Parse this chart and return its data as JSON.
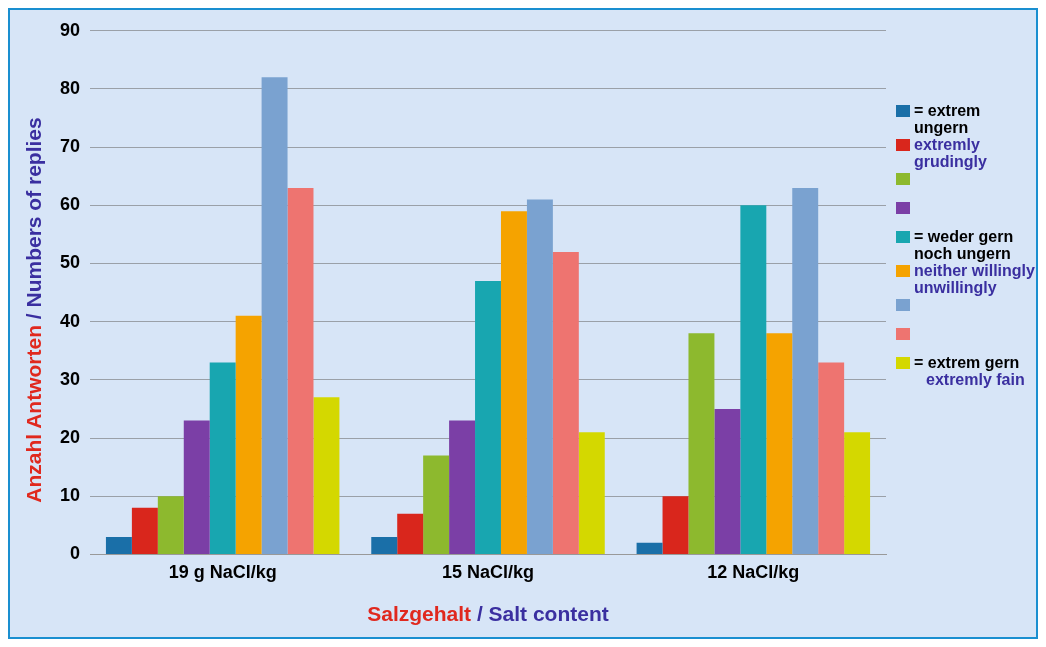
{
  "chart_data": {
    "type": "bar",
    "categories": [
      "19 g NaCl/kg",
      "15 NaCl/kg",
      "12 NaCl/kg"
    ],
    "xlabel": "Salzgehalt / Salt content",
    "ylabel": "Anzahl Antworten / Numbers of replies",
    "ylim": [
      0,
      90
    ],
    "yticks": [
      0,
      10,
      20,
      30,
      40,
      50,
      60,
      70,
      80,
      90
    ],
    "grid": "y",
    "legend": "right",
    "annotations": [
      "extremly grudingly",
      "neither willingly unwillingly",
      "extremly fain"
    ],
    "series": [
      {
        "name": "= extrem ungern",
        "color": "#1a6fa8",
        "values": [
          3,
          3,
          2
        ]
      },
      {
        "color": "#d9261c",
        "values": [
          8,
          7,
          10
        ]
      },
      {
        "color": "#8db92e",
        "values": [
          10,
          17,
          38
        ]
      },
      {
        "color": "#7b3fa6",
        "values": [
          23,
          23,
          25
        ]
      },
      {
        "name": "= weder gern noch ungern",
        "color": "#18a6b0",
        "values": [
          33,
          47,
          60
        ]
      },
      {
        "color": "#f5a300",
        "values": [
          41,
          59,
          38
        ]
      },
      {
        "color": "#7aa2d0",
        "values": [
          82,
          61,
          63
        ]
      },
      {
        "color": "#ee7470",
        "values": [
          63,
          52,
          33
        ]
      },
      {
        "name": "= extrem gern",
        "color": "#d4d800",
        "values": [
          27,
          21,
          21
        ]
      }
    ]
  }
}
